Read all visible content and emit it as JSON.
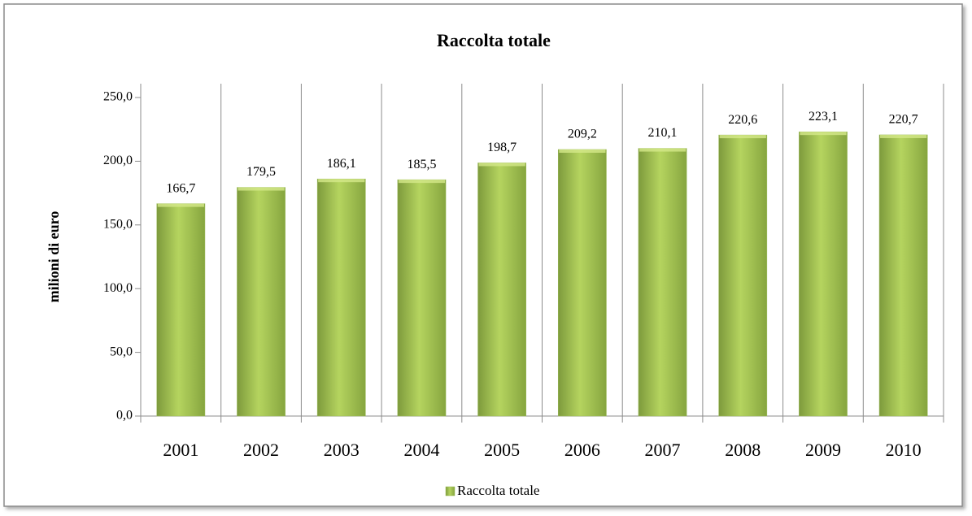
{
  "chart_data": {
    "type": "bar",
    "title": "Raccolta totale",
    "y_label": "milioni di euro",
    "categories": [
      "2001",
      "2002",
      "2003",
      "2004",
      "2005",
      "2006",
      "2007",
      "2008",
      "2009",
      "2010"
    ],
    "series": [
      {
        "name": "Raccolta totale",
        "color": "#9bbb59",
        "values": [
          166.7,
          179.5,
          186.1,
          185.5,
          198.7,
          209.2,
          210.1,
          220.6,
          223.1,
          220.7
        ],
        "value_labels": [
          "166,7",
          "179,5",
          "186,1",
          "185,5",
          "198,7",
          "209,2",
          "210,1",
          "220,6",
          "223,1",
          "220,7"
        ]
      }
    ],
    "ylim": [
      0,
      250
    ],
    "yticks": [
      {
        "value": 0,
        "label": "0,0"
      },
      {
        "value": 50,
        "label": "50,0"
      },
      {
        "value": 100,
        "label": "100,0"
      },
      {
        "value": 150,
        "label": "150,0"
      },
      {
        "value": 200,
        "label": "200,0"
      },
      {
        "value": 250,
        "label": "250,0"
      }
    ],
    "grid": "x",
    "legend": "bottom"
  }
}
